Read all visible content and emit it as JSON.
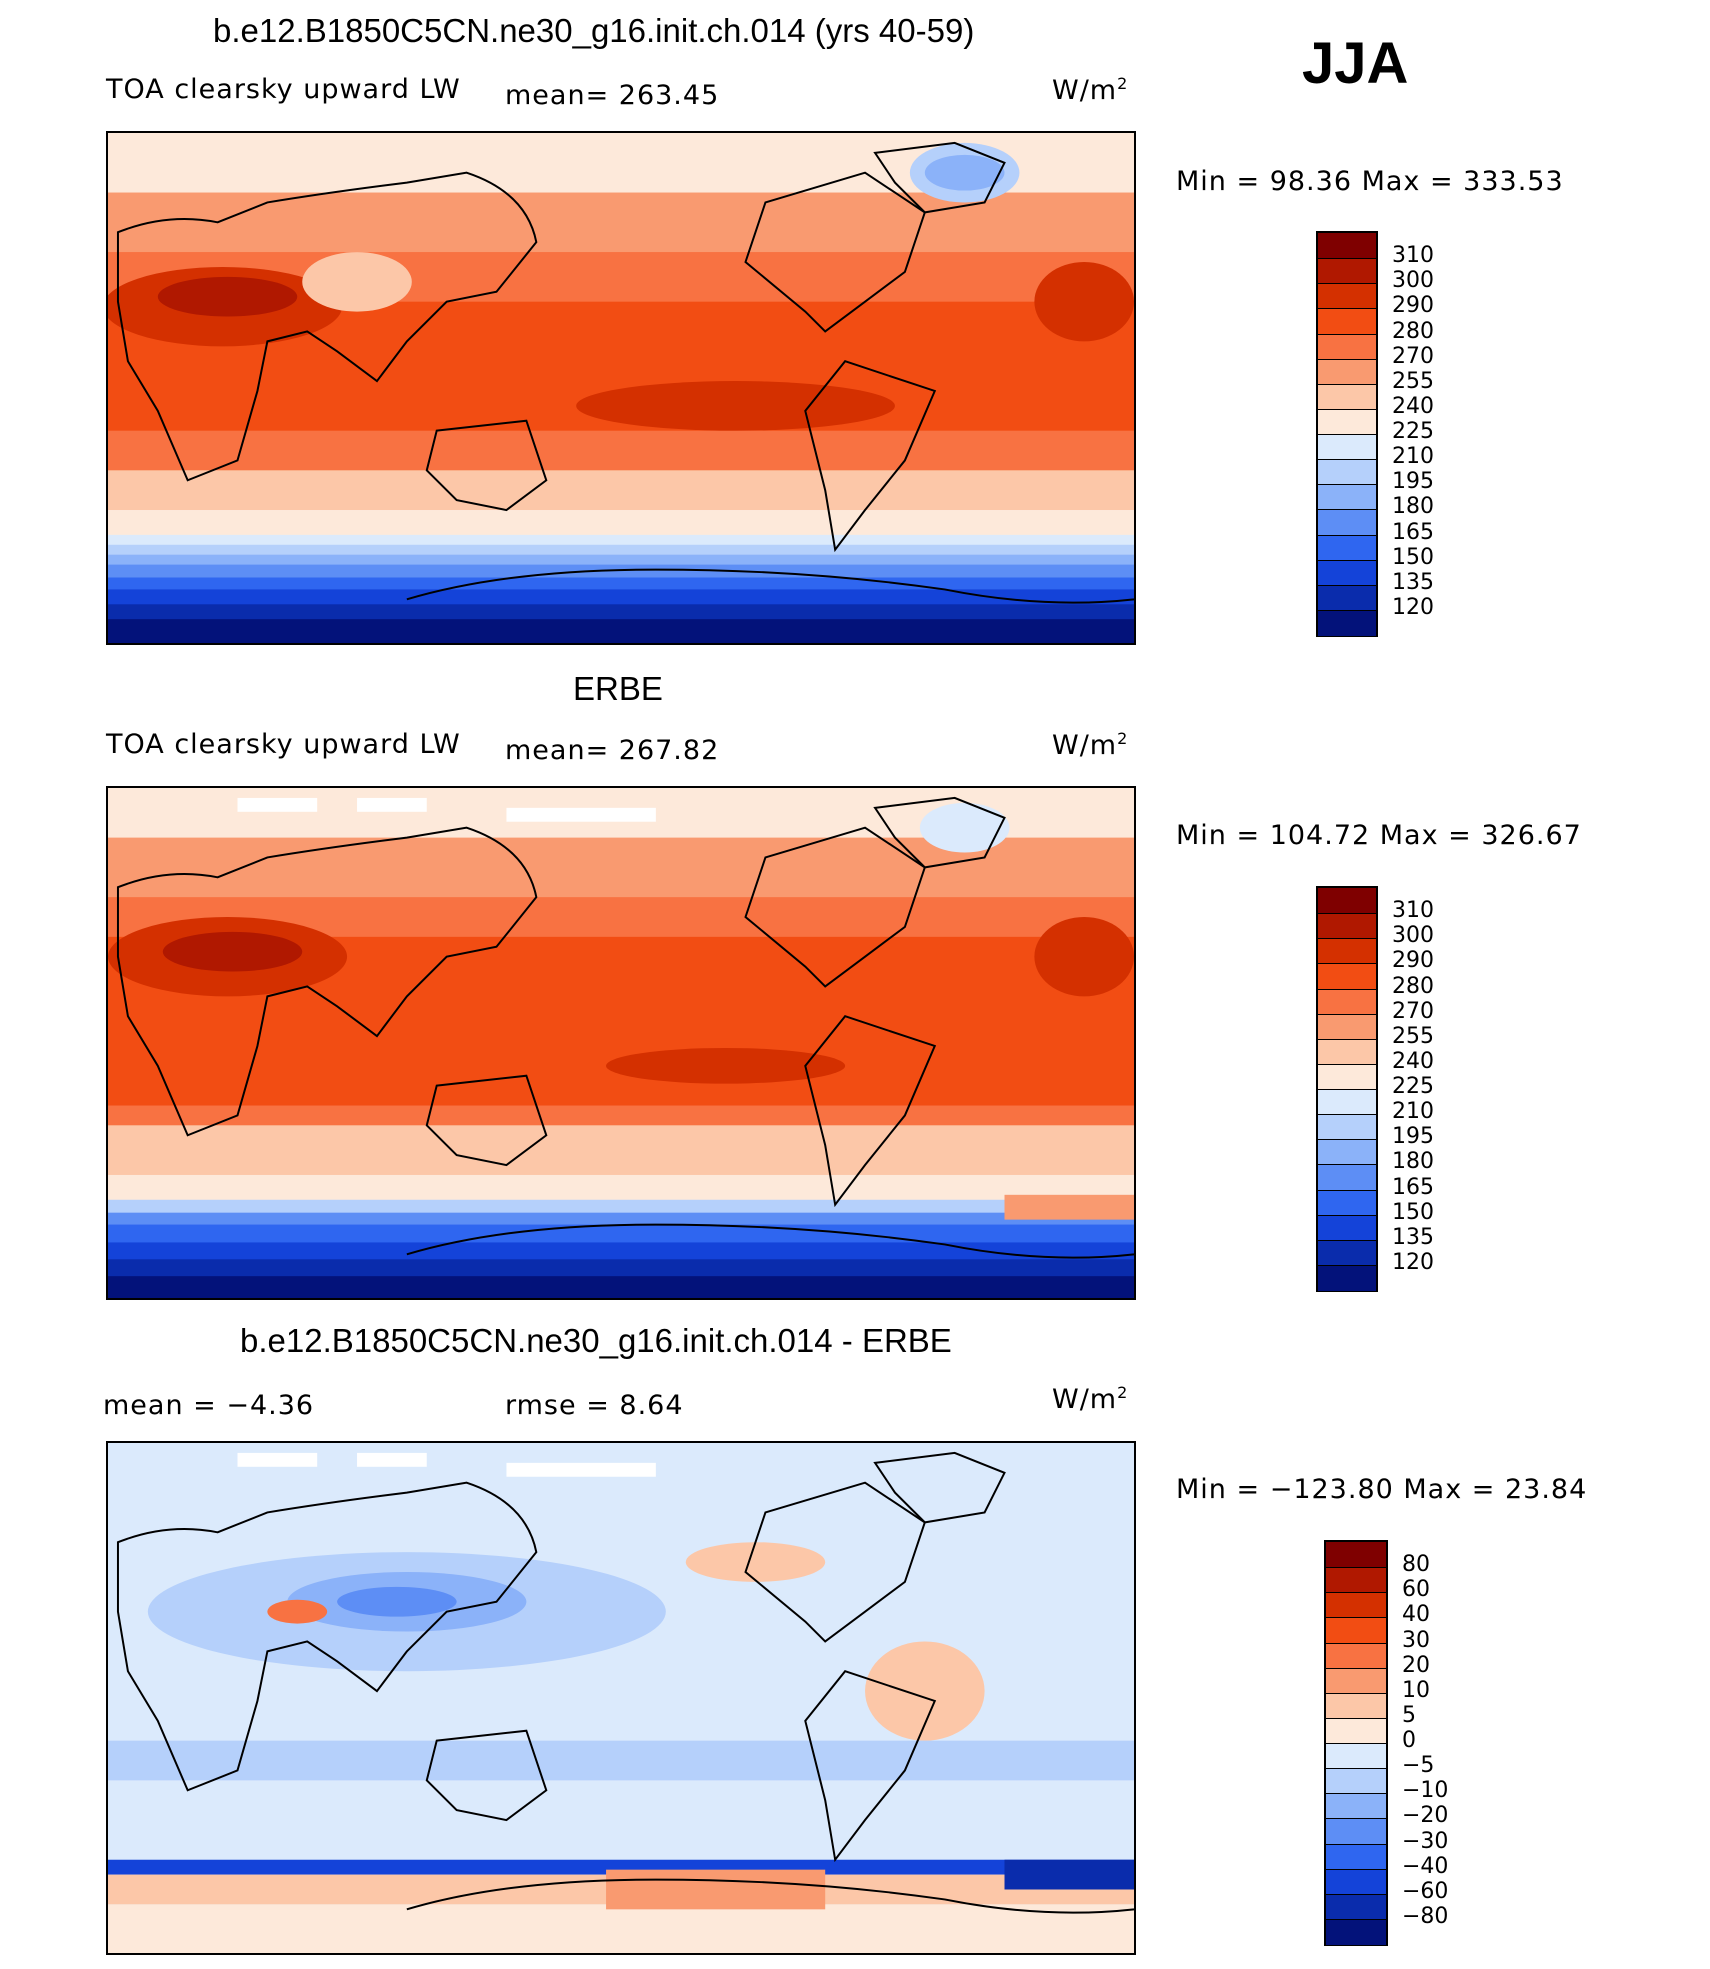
{
  "season": "JJA",
  "units": "W/m",
  "units_sup": "2",
  "panels": [
    {
      "title": "b.e12.B1850C5CN.ne30_g16.init.ch.014 (yrs 40-59)",
      "variable": "TOA clearsky upward LW",
      "mean_text": "mean= 263.45",
      "minmax_text": "Min =  98.36 Max = 333.53"
    },
    {
      "title": "ERBE",
      "variable": "TOA clearsky upward LW",
      "mean_text": "mean= 267.82",
      "minmax_text": "Min = 104.72 Max = 326.67"
    },
    {
      "title": "b.e12.B1850C5CN.ne30_g16.init.ch.014 - ERBE",
      "mean_text": "mean =   −4.36",
      "rmse_text": "rmse =    8.64",
      "minmax_text": "Min = −123.80 Max =  23.84"
    }
  ],
  "colorbar_abs": {
    "labels": [
      "310",
      "300",
      "290",
      "280",
      "270",
      "255",
      "240",
      "225",
      "210",
      "195",
      "180",
      "165",
      "150",
      "135",
      "120"
    ],
    "colors": [
      "#7f0000",
      "#b01800",
      "#d43000",
      "#f24d13",
      "#f87242",
      "#f99a70",
      "#fcc7a8",
      "#fde9da",
      "#dbeafc",
      "#b5d0fb",
      "#8bb2f9",
      "#5d8ef5",
      "#2f66f0",
      "#1443d9",
      "#0a2cac",
      "#03127a"
    ]
  },
  "colorbar_diff": {
    "labels": [
      "80",
      "60",
      "40",
      "30",
      "20",
      "10",
      "5",
      "0",
      "−5",
      "−10",
      "−20",
      "−30",
      "−40",
      "−60",
      "−80"
    ],
    "colors": [
      "#7f0000",
      "#b01800",
      "#d43000",
      "#f24d13",
      "#f87242",
      "#f99a70",
      "#fcc7a8",
      "#fde9da",
      "#dbeafc",
      "#b5d0fb",
      "#8bb2f9",
      "#5d8ef5",
      "#2f66f0",
      "#1443d9",
      "#0a2cac",
      "#03127a"
    ]
  }
}
